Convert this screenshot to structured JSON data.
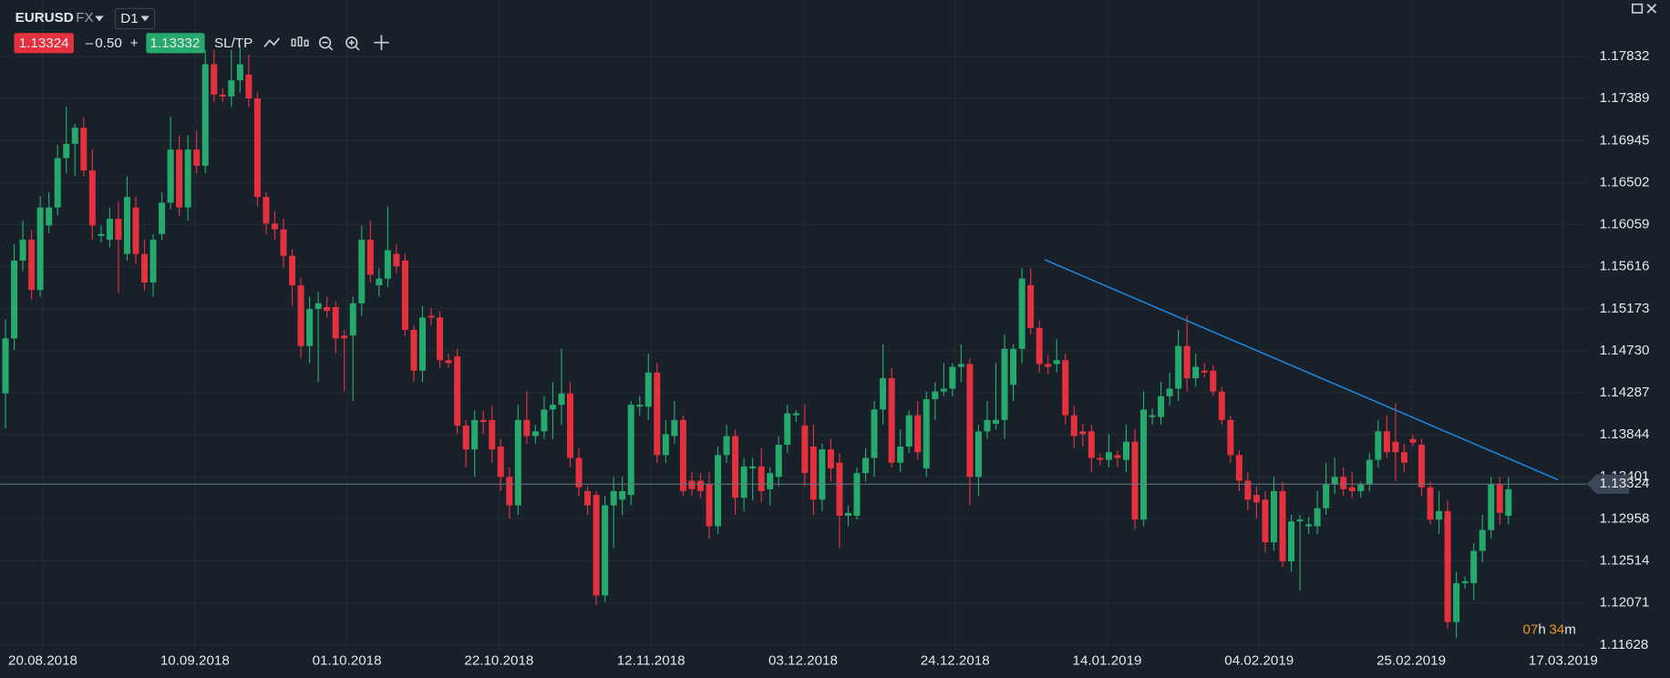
{
  "header": {
    "symbol": "EURUSD",
    "market": "FX",
    "timeframe": "D1",
    "sell": "1.13324",
    "sell_sign": "–",
    "spread": "0.50",
    "buy_sign": "+",
    "buy": "1.13332",
    "sltp": "SL/TP"
  },
  "chart_data": {
    "type": "candlestick",
    "up_color": "#26a96c",
    "down_color": "#e5313d",
    "ylim": [
      1.11583,
      1.18427
    ],
    "yticks": [
      1.17832,
      1.17389,
      1.16945,
      1.16502,
      1.16059,
      1.15616,
      1.15173,
      {
        "value": 1.1473,
        "label": "1.14730"
      },
      1.14287,
      1.13844,
      1.13401,
      1.12958,
      1.12514,
      1.12071,
      1.11628
    ],
    "xlim": [
      -0.6,
      182
    ],
    "xticks": [
      {
        "value": 4.3,
        "label": "20.08.2018"
      },
      {
        "value": 21.8,
        "label": "10.09.2018"
      },
      {
        "value": 39.3,
        "label": "01.10.2018"
      },
      {
        "value": 56.8,
        "label": "22.10.2018"
      },
      {
        "value": 74.3,
        "label": "12.11.2018"
      },
      {
        "value": 91.8,
        "label": "03.12.2018"
      },
      {
        "value": 109.3,
        "label": "24.12.2018"
      },
      {
        "value": 126.8,
        "label": "14.01.2019"
      },
      {
        "value": 144.3,
        "label": "04.02.2019"
      },
      {
        "value": 161.8,
        "label": "25.02.2019"
      },
      {
        "value": 179.3,
        "label": "17.03.2019"
      }
    ],
    "grid": true,
    "current_price": 1.13324,
    "trendline": {
      "x": [
        119.6,
        178.7
      ],
      "y": [
        1.1569,
        1.1337
      ],
      "color": "#1e88e5"
    },
    "countdown": {
      "hours": "07",
      "h": "h",
      "minutes": "34",
      "m": "m"
    },
    "ohlc": [
      [
        1.1428,
        1.1506,
        1.1391,
        1.1486
      ],
      [
        1.1486,
        1.1585,
        1.1474,
        1.1568
      ],
      [
        1.1568,
        1.161,
        1.1557,
        1.159
      ],
      [
        1.159,
        1.16,
        1.1527,
        1.1537
      ],
      [
        1.1537,
        1.1636,
        1.153,
        1.1624
      ],
      [
        1.1605,
        1.164,
        1.1597,
        1.1624
      ],
      [
        1.1624,
        1.169,
        1.1616,
        1.1676
      ],
      [
        1.1676,
        1.173,
        1.166,
        1.1691
      ],
      [
        1.1691,
        1.1712,
        1.1657,
        1.1708
      ],
      [
        1.1708,
        1.1719,
        1.1657,
        1.1663
      ],
      [
        1.1663,
        1.1685,
        1.159,
        1.1605
      ],
      [
        1.1594,
        1.1605,
        1.1587,
        1.1596
      ],
      [
        1.159,
        1.1624,
        1.1582,
        1.1612
      ],
      [
        1.1612,
        1.163,
        1.1534,
        1.159
      ],
      [
        1.1575,
        1.1657,
        1.1568,
        1.1635
      ],
      [
        1.1624,
        1.1635,
        1.1565,
        1.1575
      ],
      [
        1.1575,
        1.159,
        1.1537,
        1.1545
      ],
      [
        1.1545,
        1.1596,
        1.153,
        1.159
      ],
      [
        1.1596,
        1.164,
        1.159,
        1.1629
      ],
      [
        1.1629,
        1.172,
        1.1622,
        1.1685
      ],
      [
        1.1685,
        1.17,
        1.1615,
        1.1624
      ],
      [
        1.1624,
        1.17,
        1.161,
        1.1685
      ],
      [
        1.1685,
        1.1705,
        1.166,
        1.1668
      ],
      [
        1.1668,
        1.179,
        1.166,
        1.1775
      ],
      [
        1.1775,
        1.179,
        1.1735,
        1.1743
      ],
      [
        1.1743,
        1.175,
        1.1735,
        1.1741
      ],
      [
        1.1741,
        1.179,
        1.173,
        1.1758
      ],
      [
        1.1758,
        1.1795,
        1.1745,
        1.1775
      ],
      [
        1.1764,
        1.1785,
        1.173,
        1.1739
      ],
      [
        1.1739,
        1.1745,
        1.1625,
        1.1635
      ],
      [
        1.1635,
        1.164,
        1.1596,
        1.1607
      ],
      [
        1.1607,
        1.162,
        1.159,
        1.1601
      ],
      [
        1.1601,
        1.1612,
        1.156,
        1.1573
      ],
      [
        1.1573,
        1.158,
        1.152,
        1.1542
      ],
      [
        1.1542,
        1.155,
        1.1465,
        1.1478
      ],
      [
        1.1478,
        1.153,
        1.146,
        1.1517
      ],
      [
        1.1517,
        1.1535,
        1.144,
        1.1523
      ],
      [
        1.1519,
        1.153,
        1.1508,
        1.1515
      ],
      [
        1.1519,
        1.1525,
        1.147,
        1.1486
      ],
      [
        1.1489,
        1.1495,
        1.143,
        1.1486
      ],
      [
        1.1489,
        1.153,
        1.142,
        1.1523
      ],
      [
        1.1523,
        1.1605,
        1.151,
        1.159
      ],
      [
        1.159,
        1.161,
        1.1545,
        1.1553
      ],
      [
        1.1542,
        1.156,
        1.153,
        1.1549
      ],
      [
        1.1549,
        1.1625,
        1.154,
        1.1579
      ],
      [
        1.1575,
        1.1585,
        1.1555,
        1.1562
      ],
      [
        1.1568,
        1.1575,
        1.1488,
        1.1495
      ],
      [
        1.1495,
        1.15,
        1.144,
        1.1452
      ],
      [
        1.1452,
        1.152,
        1.144,
        1.1508
      ],
      [
        1.151,
        1.1518,
        1.15,
        1.1508
      ],
      [
        1.1508,
        1.1515,
        1.1455,
        1.1463
      ],
      [
        1.1463,
        1.147,
        1.1455,
        1.146
      ],
      [
        1.1467,
        1.1475,
        1.1385,
        1.1394
      ],
      [
        1.1394,
        1.14,
        1.135,
        1.1369
      ],
      [
        1.1369,
        1.141,
        1.134,
        1.14
      ],
      [
        1.14,
        1.141,
        1.1385,
        1.1398
      ],
      [
        1.14,
        1.1415,
        1.1355,
        1.1369
      ],
      [
        1.1372,
        1.138,
        1.1325,
        1.134
      ],
      [
        1.134,
        1.135,
        1.1296,
        1.131
      ],
      [
        1.131,
        1.1416,
        1.13,
        1.14
      ],
      [
        1.14,
        1.143,
        1.1375,
        1.1383
      ],
      [
        1.1383,
        1.1395,
        1.1375,
        1.1388
      ],
      [
        1.1388,
        1.1425,
        1.138,
        1.1411
      ],
      [
        1.1411,
        1.144,
        1.138,
        1.1416
      ],
      [
        1.1416,
        1.1475,
        1.1395,
        1.1428
      ],
      [
        1.1428,
        1.144,
        1.135,
        1.136
      ],
      [
        1.136,
        1.137,
        1.132,
        1.1329
      ],
      [
        1.1325,
        1.133,
        1.13,
        1.131
      ],
      [
        1.1321,
        1.1325,
        1.1205,
        1.1215
      ],
      [
        1.1215,
        1.132,
        1.1208,
        1.131
      ],
      [
        1.131,
        1.134,
        1.1265,
        1.1325
      ],
      [
        1.1316,
        1.134,
        1.13,
        1.1325
      ],
      [
        1.1321,
        1.142,
        1.131,
        1.1416
      ],
      [
        1.1414,
        1.1425,
        1.1405,
        1.1416
      ],
      [
        1.1414,
        1.147,
        1.14,
        1.145
      ],
      [
        1.145,
        1.146,
        1.1355,
        1.1363
      ],
      [
        1.1363,
        1.14,
        1.1355,
        1.1385
      ],
      [
        1.1383,
        1.142,
        1.1375,
        1.14
      ],
      [
        1.14,
        1.1405,
        1.132,
        1.1325
      ],
      [
        1.1336,
        1.1345,
        1.132,
        1.1327
      ],
      [
        1.1336,
        1.1344,
        1.1318,
        1.1325
      ],
      [
        1.1332,
        1.1345,
        1.1275,
        1.1288
      ],
      [
        1.1288,
        1.1372,
        1.128,
        1.1363
      ],
      [
        1.1363,
        1.1395,
        1.1355,
        1.1383
      ],
      [
        1.1383,
        1.139,
        1.13,
        1.1318
      ],
      [
        1.1318,
        1.136,
        1.1304,
        1.1351
      ],
      [
        1.1349,
        1.136,
        1.1315,
        1.1351
      ],
      [
        1.1351,
        1.137,
        1.1313,
        1.1325
      ],
      [
        1.1327,
        1.135,
        1.131,
        1.1344
      ],
      [
        1.134,
        1.1383,
        1.133,
        1.1374
      ],
      [
        1.1374,
        1.1416,
        1.1365,
        1.1407
      ],
      [
        1.1405,
        1.141,
        1.1398,
        1.1407
      ],
      [
        1.1394,
        1.1416,
        1.133,
        1.1344
      ],
      [
        1.1372,
        1.1395,
        1.13,
        1.1316
      ],
      [
        1.1316,
        1.1375,
        1.1304,
        1.1369
      ],
      [
        1.1369,
        1.138,
        1.1335,
        1.1349
      ],
      [
        1.1355,
        1.1365,
        1.1265,
        1.1299
      ],
      [
        1.1299,
        1.131,
        1.1288,
        1.1302
      ],
      [
        1.1299,
        1.135,
        1.1295,
        1.1344
      ],
      [
        1.1344,
        1.137,
        1.1335,
        1.136
      ],
      [
        1.136,
        1.142,
        1.134,
        1.1411
      ],
      [
        1.1411,
        1.148,
        1.1395,
        1.1444
      ],
      [
        1.1444,
        1.1455,
        1.135,
        1.1355
      ],
      [
        1.1355,
        1.139,
        1.1345,
        1.1372
      ],
      [
        1.1372,
        1.141,
        1.1365,
        1.1405
      ],
      [
        1.1405,
        1.142,
        1.1358,
        1.1366
      ],
      [
        1.1349,
        1.143,
        1.134,
        1.1422
      ],
      [
        1.1422,
        1.144,
        1.14,
        1.143
      ],
      [
        1.143,
        1.146,
        1.1425,
        1.1433
      ],
      [
        1.1433,
        1.146,
        1.1425,
        1.1456
      ],
      [
        1.1456,
        1.148,
        1.144,
        1.1459
      ],
      [
        1.1459,
        1.1465,
        1.131,
        1.134
      ],
      [
        1.134,
        1.1395,
        1.132,
        1.1388
      ],
      [
        1.1388,
        1.142,
        1.138,
        1.14
      ],
      [
        1.1396,
        1.146,
        1.139,
        1.14
      ],
      [
        1.14,
        1.149,
        1.138,
        1.1475
      ],
      [
        1.1437,
        1.148,
        1.142,
        1.1475
      ],
      [
        1.1475,
        1.156,
        1.146,
        1.1549
      ],
      [
        1.1542,
        1.156,
        1.149,
        1.1497
      ],
      [
        1.1497,
        1.1505,
        1.145,
        1.1459
      ],
      [
        1.1459,
        1.1468,
        1.1448,
        1.1456
      ],
      [
        1.1459,
        1.1485,
        1.145,
        1.1463
      ],
      [
        1.1463,
        1.147,
        1.1395,
        1.1405
      ],
      [
        1.1405,
        1.1415,
        1.137,
        1.1383
      ],
      [
        1.1388,
        1.1396,
        1.1372,
        1.1385
      ],
      [
        1.1388,
        1.1395,
        1.1345,
        1.136
      ],
      [
        1.136,
        1.1365,
        1.1352,
        1.1358
      ],
      [
        1.1358,
        1.1385,
        1.135,
        1.1366
      ],
      [
        1.1363,
        1.1368,
        1.135,
        1.136
      ],
      [
        1.1358,
        1.1395,
        1.1345,
        1.1377
      ],
      [
        1.1377,
        1.139,
        1.1285,
        1.1295
      ],
      [
        1.1295,
        1.143,
        1.1288,
        1.1411
      ],
      [
        1.1403,
        1.1412,
        1.1395,
        1.1405
      ],
      [
        1.1403,
        1.144,
        1.1395,
        1.1425
      ],
      [
        1.1425,
        1.145,
        1.1415,
        1.1433
      ],
      [
        1.1433,
        1.1495,
        1.142,
        1.1478
      ],
      [
        1.1478,
        1.151,
        1.143,
        1.1444
      ],
      [
        1.1444,
        1.147,
        1.1435,
        1.1456
      ],
      [
        1.1452,
        1.146,
        1.1445,
        1.145
      ],
      [
        1.1452,
        1.1458,
        1.1425,
        1.143
      ],
      [
        1.143,
        1.1435,
        1.1395,
        1.14
      ],
      [
        1.14,
        1.1405,
        1.1355,
        1.1363
      ],
      [
        1.1363,
        1.1368,
        1.1325,
        1.1336
      ],
      [
        1.1336,
        1.1345,
        1.1305,
        1.1316
      ],
      [
        1.1321,
        1.133,
        1.1296,
        1.1313
      ],
      [
        1.1316,
        1.1325,
        1.126,
        1.1271
      ],
      [
        1.1271,
        1.134,
        1.1262,
        1.1325
      ],
      [
        1.1325,
        1.1335,
        1.1245,
        1.1251
      ],
      [
        1.1251,
        1.13,
        1.124,
        1.1293
      ],
      [
        1.1293,
        1.13,
        1.122,
        1.1295
      ],
      [
        1.1288,
        1.1298,
        1.128,
        1.129
      ],
      [
        1.1288,
        1.1325,
        1.128,
        1.1307
      ],
      [
        1.1307,
        1.1355,
        1.13,
        1.1332
      ],
      [
        1.1332,
        1.136,
        1.1322,
        1.134
      ],
      [
        1.134,
        1.135,
        1.132,
        1.1327
      ],
      [
        1.1329,
        1.1345,
        1.1318,
        1.1325
      ],
      [
        1.1325,
        1.1335,
        1.1318,
        1.1332
      ],
      [
        1.1332,
        1.1365,
        1.1325,
        1.1358
      ],
      [
        1.1358,
        1.14,
        1.135,
        1.1388
      ],
      [
        1.1388,
        1.1405,
        1.136,
        1.1366
      ],
      [
        1.1377,
        1.1418,
        1.1335,
        1.1366
      ],
      [
        1.1366,
        1.1375,
        1.1345,
        1.1355
      ],
      [
        1.138,
        1.1385,
        1.1372,
        1.1376
      ],
      [
        1.1374,
        1.138,
        1.132,
        1.1329
      ],
      [
        1.1329,
        1.1335,
        1.129,
        1.1295
      ],
      [
        1.1295,
        1.1325,
        1.128,
        1.1304
      ],
      [
        1.1304,
        1.1315,
        1.118,
        1.1187
      ],
      [
        1.1187,
        1.124,
        1.117,
        1.1228
      ],
      [
        1.1228,
        1.1235,
        1.1222,
        1.123
      ],
      [
        1.1228,
        1.127,
        1.121,
        1.1262
      ],
      [
        1.1262,
        1.13,
        1.125,
        1.1284
      ],
      [
        1.1284,
        1.134,
        1.1275,
        1.1332
      ],
      [
        1.1332,
        1.134,
        1.129,
        1.1302
      ],
      [
        1.1299,
        1.134,
        1.129,
        1.1327
      ]
    ]
  }
}
